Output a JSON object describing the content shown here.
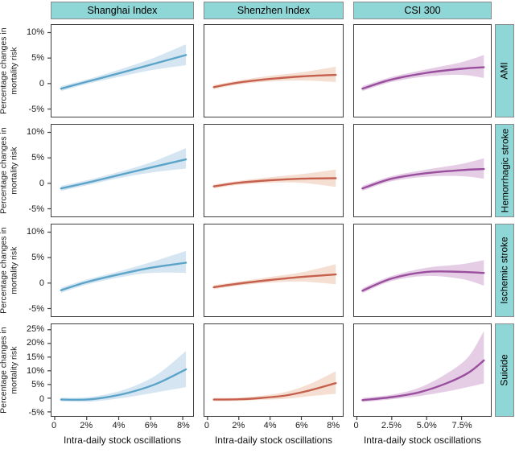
{
  "figure": {
    "col_headers": [
      "Shanghai Index",
      "Shenzhen Index",
      "CSI 300"
    ],
    "row_labels": [
      "AMI",
      "Hemorrhagic stroke",
      "Ischemic stroke",
      "Suicide"
    ],
    "ylabel_lines": [
      "Percentage changes in",
      "mortality risk"
    ],
    "xlabel": "Intra-daily stock oscillations",
    "colors": {
      "strip_bg": "#8FD6D6",
      "strip_border": "#8a8a8a",
      "panel_border": "#3f3f3f",
      "shanghai_line": "#5BA4C8",
      "shanghai_band": "#D5E6F2",
      "shenzhen_line": "#C6604E",
      "shenzhen_band": "#F5DFD2",
      "csi_line": "#9A4E9E",
      "csi_band": "#E5CEE5"
    }
  },
  "chart_data": {
    "type": "line",
    "title": "",
    "description": "Faceted smooth curves with confidence bands: percentage changes in mortality risk vs intra-daily stock oscillations, by stock index (columns) and cause of death (rows)",
    "ylabel": "Percentage changes in mortality risk",
    "xlabel": "Intra-daily stock oscillations",
    "grid": "off",
    "legend": "none",
    "facet_columns": [
      {
        "label": "Shanghai Index",
        "xlim": [
          -0.2,
          8.65
        ],
        "line_color": "#5BA4C8",
        "band_color": "#D5E6F2",
        "xticks": [
          {
            "v": 0,
            "label": "0"
          },
          {
            "v": 2,
            "label": "2%"
          },
          {
            "v": 4,
            "label": "4%"
          },
          {
            "v": 6,
            "label": "6%"
          },
          {
            "v": 8,
            "label": "8%"
          }
        ]
      },
      {
        "label": "Shenzhen Index",
        "xlim": [
          -0.2,
          8.65
        ],
        "line_color": "#C6604E",
        "band_color": "#F5DFD2",
        "xticks": [
          {
            "v": 0,
            "label": "0"
          },
          {
            "v": 2,
            "label": "2%"
          },
          {
            "v": 4,
            "label": "4%"
          },
          {
            "v": 6,
            "label": "6%"
          },
          {
            "v": 8,
            "label": "8%"
          }
        ]
      },
      {
        "label": "CSI 300",
        "xlim": [
          -0.2,
          9.6
        ],
        "line_color": "#9A4E9E",
        "band_color": "#E5CEE5",
        "xticks": [
          {
            "v": 0,
            "label": "0"
          },
          {
            "v": 2.5,
            "label": "2.5%"
          },
          {
            "v": 5,
            "label": "5.0%"
          },
          {
            "v": 7.5,
            "label": "7.5%"
          }
        ]
      }
    ],
    "facet_rows": [
      {
        "label": "AMI",
        "ylim": [
          -6.5,
          11.5
        ],
        "yticks": [
          {
            "v": 10,
            "label": "10%"
          },
          {
            "v": 5,
            "label": "5%"
          },
          {
            "v": 0,
            "label": "0"
          },
          {
            "v": -5,
            "label": "-5%"
          }
        ]
      },
      {
        "label": "Hemorrhagic stroke",
        "ylim": [
          -6.5,
          11.5
        ],
        "yticks": [
          {
            "v": 10,
            "label": "10%"
          },
          {
            "v": 5,
            "label": "5%"
          },
          {
            "v": 0,
            "label": "0"
          },
          {
            "v": -5,
            "label": "-5%"
          }
        ]
      },
      {
        "label": "Ischemic stroke",
        "ylim": [
          -6.5,
          11.5
        ],
        "yticks": [
          {
            "v": 10,
            "label": "10%"
          },
          {
            "v": 5,
            "label": "5%"
          },
          {
            "v": 0,
            "label": "0"
          },
          {
            "v": -5,
            "label": "-5%"
          }
        ]
      },
      {
        "label": "Suicide",
        "ylim": [
          -6.5,
          27
        ],
        "yticks": [
          {
            "v": 25,
            "label": "25%"
          },
          {
            "v": 20,
            "label": "20%"
          },
          {
            "v": 15,
            "label": "15%"
          },
          {
            "v": 10,
            "label": "10%"
          },
          {
            "v": 5,
            "label": "5%"
          },
          {
            "v": 0,
            "label": "0"
          },
          {
            "v": -5,
            "label": "-5%"
          }
        ]
      }
    ],
    "panels": [
      [
        {
          "x": [
            0.4,
            2,
            4,
            6,
            8.2
          ],
          "y": [
            -1.0,
            0.35,
            2.0,
            3.7,
            5.6
          ],
          "lo": [
            -1.5,
            -0.1,
            1.3,
            2.6,
            3.6
          ],
          "hi": [
            -0.5,
            0.8,
            2.7,
            4.8,
            7.7
          ]
        },
        {
          "x": [
            0.4,
            2,
            4,
            6,
            8.2
          ],
          "y": [
            -0.7,
            0.2,
            0.9,
            1.4,
            1.7
          ],
          "lo": [
            -1.1,
            -0.2,
            0.4,
            0.6,
            0.3
          ],
          "hi": [
            -0.3,
            0.6,
            1.5,
            2.2,
            3.3
          ]
        },
        {
          "x": [
            0.4,
            2.5,
            5,
            7.5,
            9.1
          ],
          "y": [
            -1.0,
            0.8,
            2.1,
            2.9,
            3.2
          ],
          "lo": [
            -1.5,
            0.3,
            1.4,
            1.7,
            1.1
          ],
          "hi": [
            -0.5,
            1.3,
            2.8,
            4.2,
            5.6
          ]
        }
      ],
      [
        {
          "x": [
            0.4,
            2,
            4,
            6,
            8.2
          ],
          "y": [
            -1.0,
            0.1,
            1.6,
            3.1,
            4.7
          ],
          "lo": [
            -1.5,
            -0.4,
            1.0,
            2.1,
            2.9
          ],
          "hi": [
            -0.5,
            0.6,
            2.2,
            4.1,
            6.9
          ]
        },
        {
          "x": [
            0.4,
            2,
            4,
            6,
            8.2
          ],
          "y": [
            -0.6,
            0.1,
            0.6,
            0.9,
            1.0
          ],
          "lo": [
            -1.0,
            -0.3,
            0.1,
            0.1,
            -0.7
          ],
          "hi": [
            -0.2,
            0.5,
            1.2,
            1.8,
            2.7
          ]
        },
        {
          "x": [
            0.4,
            2.5,
            5,
            7.5,
            9.1
          ],
          "y": [
            -1.0,
            0.9,
            2.0,
            2.6,
            2.8
          ],
          "lo": [
            -1.5,
            0.4,
            1.3,
            1.4,
            0.9
          ],
          "hi": [
            -0.5,
            1.4,
            2.7,
            3.8,
            4.9
          ]
        }
      ],
      [
        {
          "x": [
            0.4,
            2,
            4,
            6,
            8.2
          ],
          "y": [
            -1.4,
            0.2,
            1.7,
            3.0,
            4.0
          ],
          "lo": [
            -1.9,
            -0.3,
            1.1,
            2.0,
            2.0
          ],
          "hi": [
            -0.9,
            0.7,
            2.3,
            4.1,
            6.3
          ]
        },
        {
          "x": [
            0.4,
            2,
            4,
            6,
            8.2
          ],
          "y": [
            -0.8,
            -0.1,
            0.6,
            1.2,
            1.7
          ],
          "lo": [
            -1.2,
            -0.5,
            0.1,
            0.3,
            -0.2
          ],
          "hi": [
            -0.4,
            0.3,
            1.2,
            2.1,
            3.7
          ]
        },
        {
          "x": [
            0.4,
            2.5,
            5,
            7.5,
            9.1
          ],
          "y": [
            -1.5,
            0.9,
            2.2,
            2.2,
            2.0
          ],
          "lo": [
            -2.0,
            0.4,
            1.4,
            0.8,
            -0.5
          ],
          "hi": [
            -1.0,
            1.4,
            3.0,
            3.7,
            4.5
          ]
        }
      ],
      [
        {
          "x": [
            0.4,
            2,
            3.5,
            5,
            6.5,
            8.2
          ],
          "y": [
            -0.5,
            -0.5,
            0.6,
            2.6,
            5.6,
            10.5
          ],
          "lo": [
            -1.2,
            -1.3,
            -0.5,
            0.8,
            2.3,
            4.0
          ],
          "hi": [
            0.2,
            0.3,
            1.8,
            4.5,
            9.0,
            17.2
          ]
        },
        {
          "x": [
            0.4,
            2,
            3.5,
            5,
            6.5,
            8.2
          ],
          "y": [
            -0.5,
            -0.4,
            0.1,
            1.0,
            2.8,
            5.5
          ],
          "lo": [
            -1.1,
            -1.0,
            -0.6,
            -0.2,
            0.7,
            1.6
          ],
          "hi": [
            0.1,
            0.2,
            0.9,
            2.3,
            5.1,
            9.8
          ]
        },
        {
          "x": [
            0.4,
            2.5,
            4.5,
            6.5,
            8,
            9.1
          ],
          "y": [
            -0.7,
            0.4,
            2.2,
            5.6,
            9.3,
            13.8
          ],
          "lo": [
            -1.4,
            -0.4,
            0.8,
            2.5,
            4.1,
            5.4
          ],
          "hi": [
            0.1,
            1.3,
            3.9,
            9.2,
            15.2,
            24.5
          ]
        }
      ]
    ]
  }
}
